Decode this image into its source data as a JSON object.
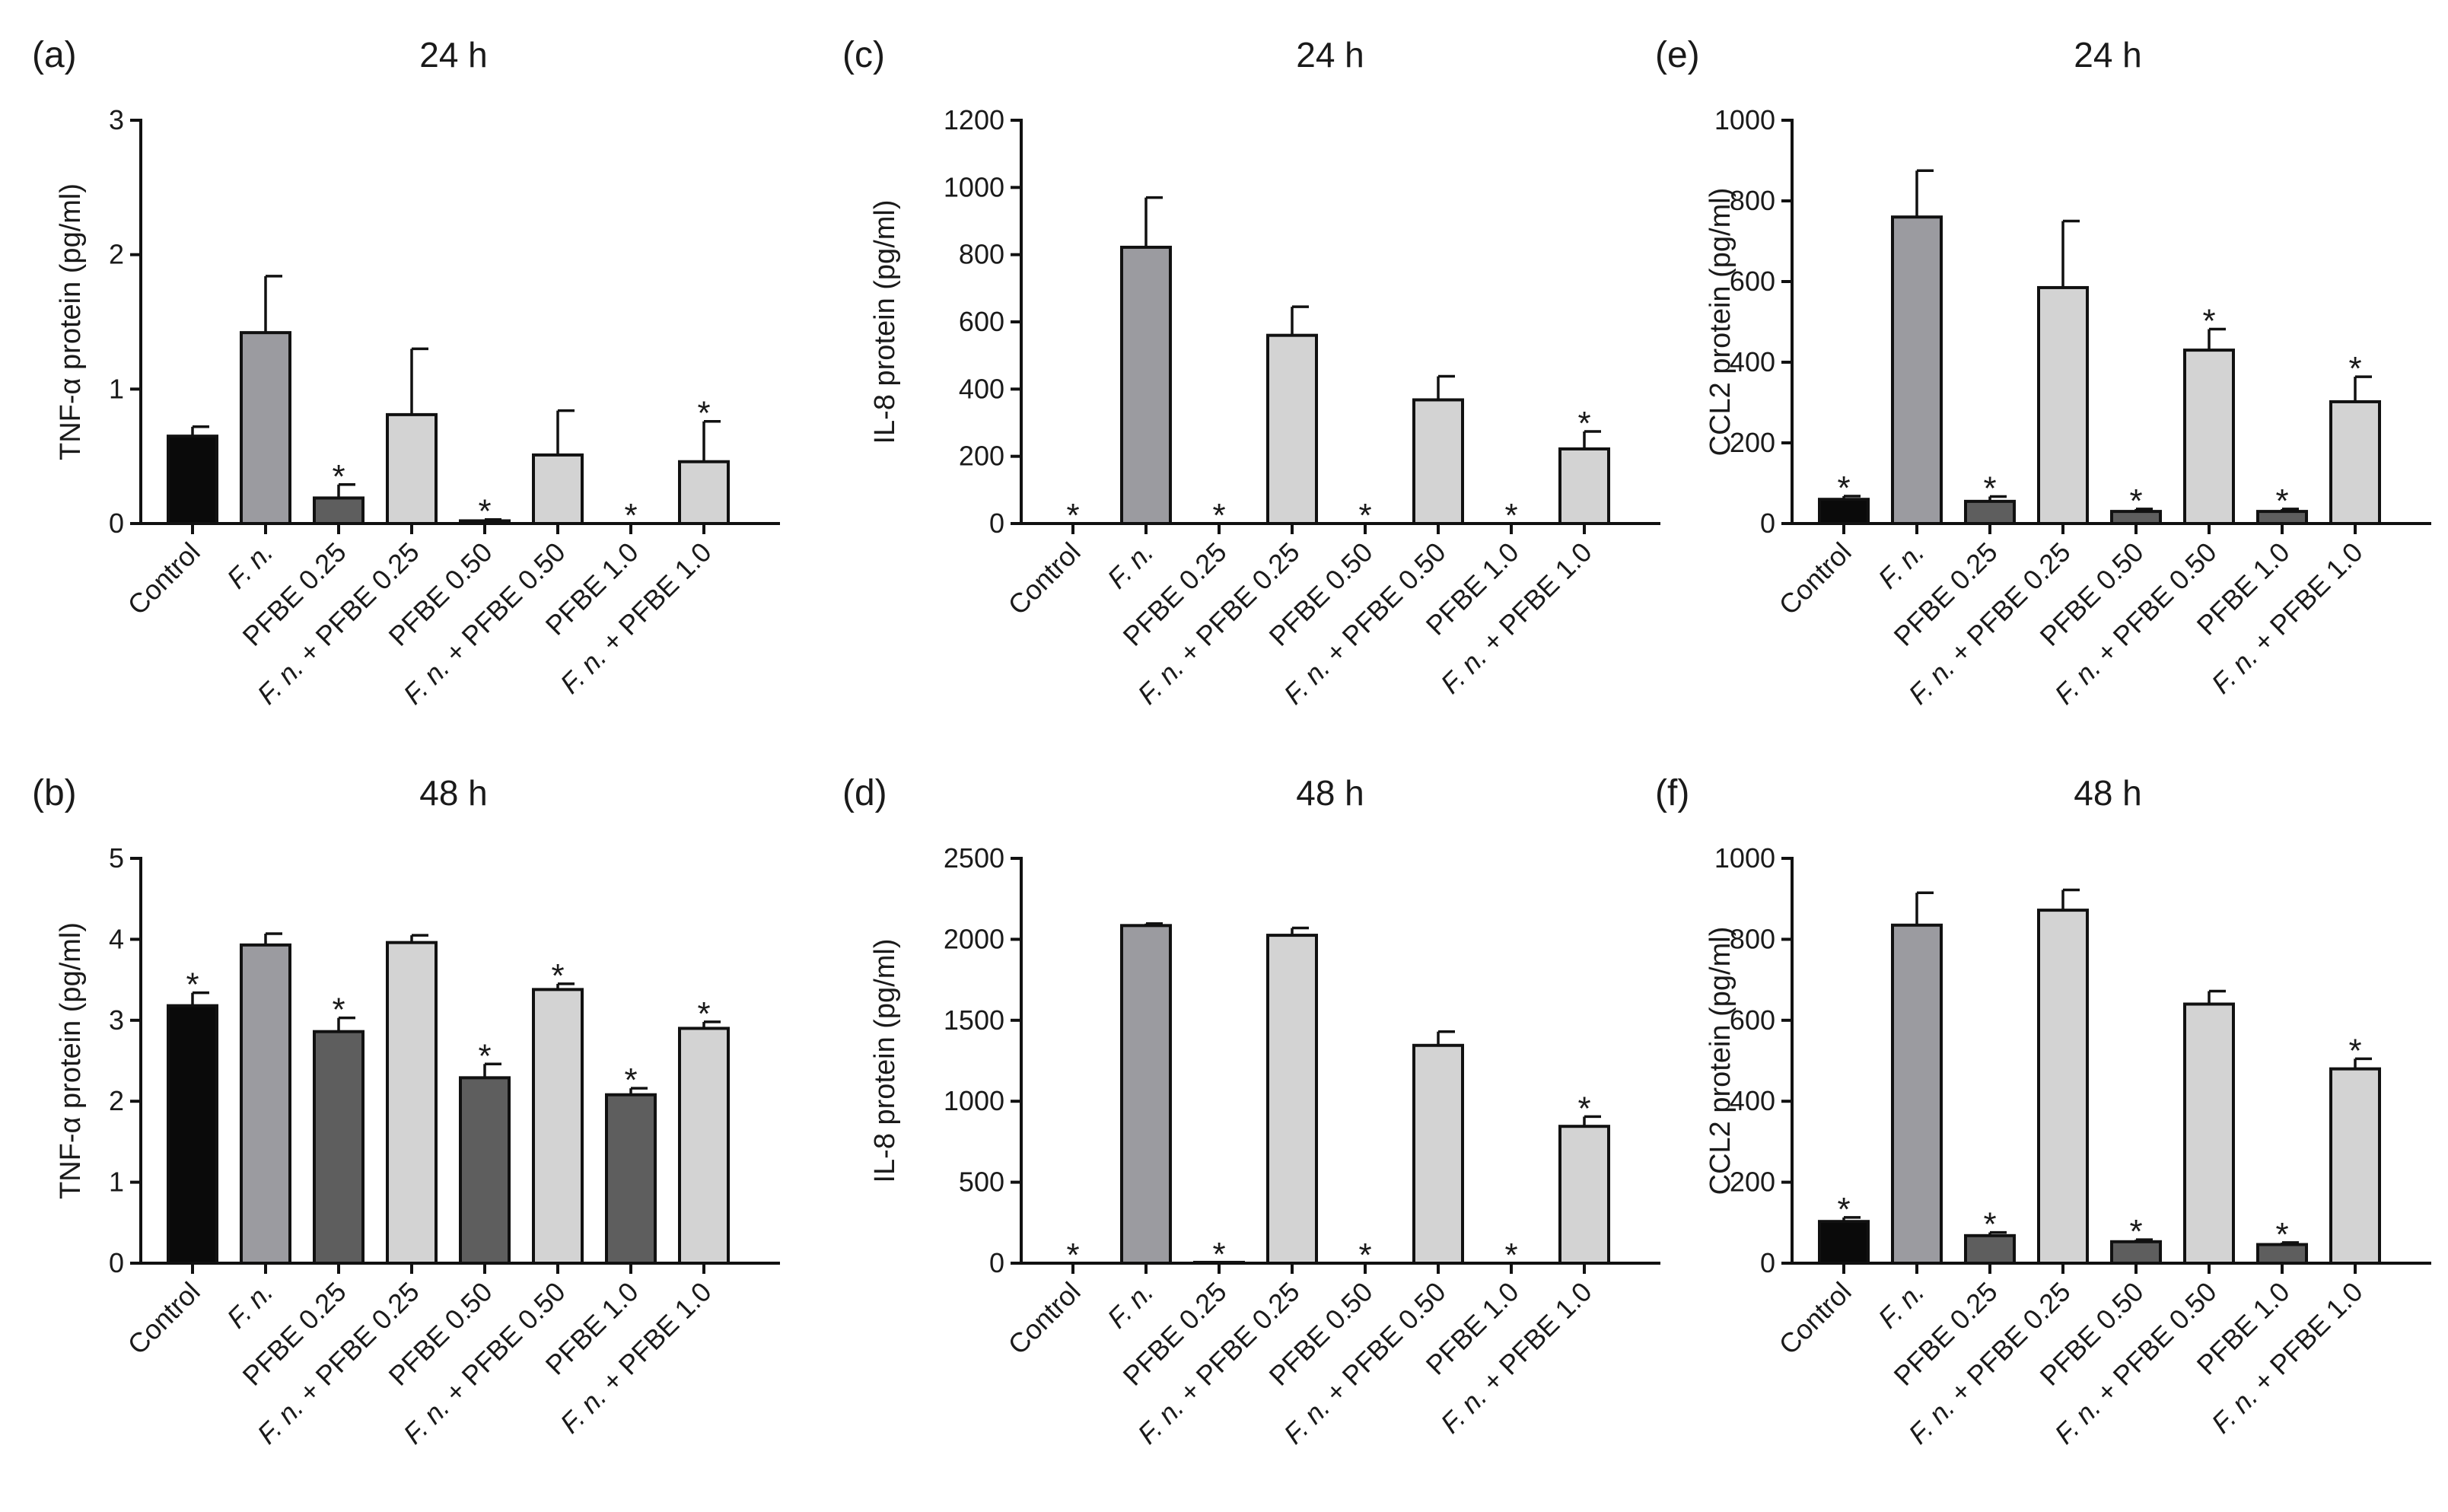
{
  "chart_data": [
    {
      "id": "a",
      "type": "bar",
      "panel_label": "(a)",
      "title": "24 h",
      "ylabel": "TNF-α protein (pg/ml)",
      "xlabel": "",
      "ylim": [
        0,
        3
      ],
      "yticks": [
        0,
        1,
        2,
        3
      ],
      "categories": [
        "Control",
        "F. n.",
        "PFBE 0.25",
        "F. n. + PFBE 0.25",
        "PFBE 0.50",
        "F. n. + PFBE 0.50",
        "PFBE 1.0",
        "F. n. + PFBE 1.0"
      ],
      "values": [
        0.65,
        1.42,
        0.19,
        0.81,
        0.02,
        0.51,
        0.0,
        0.46
      ],
      "errors": [
        0.07,
        0.42,
        0.1,
        0.49,
        0.01,
        0.33,
        0.0,
        0.3
      ],
      "significant": [
        false,
        false,
        true,
        false,
        true,
        false,
        true,
        true
      ]
    },
    {
      "id": "b",
      "type": "bar",
      "panel_label": "(b)",
      "title": "48 h",
      "ylabel": "TNF-α protein (pg/ml)",
      "xlabel": "",
      "ylim": [
        0,
        5
      ],
      "yticks": [
        0,
        1,
        2,
        3,
        4,
        5
      ],
      "categories": [
        "Control",
        "F. n.",
        "PFBE 0.25",
        "F. n. + PFBE 0.25",
        "PFBE 0.50",
        "F. n. + PFBE 0.50",
        "PFBE 1.0",
        "F. n. + PFBE 1.0"
      ],
      "values": [
        3.18,
        3.93,
        2.86,
        3.96,
        2.29,
        3.38,
        2.08,
        2.9
      ],
      "errors": [
        0.16,
        0.14,
        0.17,
        0.09,
        0.17,
        0.07,
        0.08,
        0.08
      ],
      "significant": [
        true,
        false,
        true,
        false,
        true,
        true,
        true,
        true
      ]
    },
    {
      "id": "c",
      "type": "bar",
      "panel_label": "(c)",
      "title": "24 h",
      "ylabel": "IL-8 protein (pg/ml)",
      "xlabel": "",
      "ylim": [
        0,
        1200
      ],
      "yticks": [
        0,
        200,
        400,
        600,
        800,
        1000,
        1200
      ],
      "categories": [
        "Control",
        "F. n.",
        "PFBE 0.25",
        "F. n. + PFBE 0.25",
        "PFBE 0.50",
        "F. n. + PFBE 0.50",
        "PFBE 1.0",
        "F. n. + PFBE 1.0"
      ],
      "values": [
        0,
        822,
        0,
        560,
        0,
        368,
        0,
        222
      ],
      "errors": [
        0,
        148,
        0,
        85,
        0,
        70,
        0,
        52
      ],
      "significant": [
        true,
        false,
        true,
        false,
        true,
        false,
        true,
        true
      ]
    },
    {
      "id": "d",
      "type": "bar",
      "panel_label": "(d)",
      "title": "48 h",
      "ylabel": "IL-8 protein (pg/ml)",
      "xlabel": "",
      "ylim": [
        0,
        2500
      ],
      "yticks": [
        0,
        500,
        1000,
        1500,
        2000,
        2500
      ],
      "categories": [
        "Control",
        "F. n.",
        "PFBE 0.25",
        "F. n. + PFBE 0.25",
        "PFBE 0.50",
        "F. n. + PFBE 0.50",
        "PFBE 1.0",
        "F. n. + PFBE 1.0"
      ],
      "values": [
        0,
        2085,
        5,
        2025,
        0,
        1345,
        0,
        845
      ],
      "errors": [
        0,
        12,
        0,
        45,
        0,
        85,
        0,
        60
      ],
      "significant": [
        true,
        false,
        true,
        false,
        true,
        false,
        true,
        true
      ]
    },
    {
      "id": "e",
      "type": "bar",
      "panel_label": "(e)",
      "title": "24 h",
      "ylabel": "CCL2 protein (pg/ml)",
      "xlabel": "",
      "ylim": [
        0,
        1000
      ],
      "yticks": [
        0,
        200,
        400,
        600,
        800,
        1000
      ],
      "categories": [
        "Control",
        "F. n.",
        "PFBE 0.25",
        "F. n. + PFBE 0.25",
        "PFBE 0.50",
        "F. n. + PFBE 0.50",
        "PFBE 1.0",
        "F. n. + PFBE 1.0"
      ],
      "values": [
        60,
        760,
        55,
        585,
        30,
        430,
        30,
        302
      ],
      "errors": [
        8,
        115,
        12,
        165,
        6,
        52,
        6,
        62
      ],
      "significant": [
        true,
        false,
        true,
        false,
        true,
        true,
        true,
        true
      ]
    },
    {
      "id": "f",
      "type": "bar",
      "panel_label": "(f)",
      "title": "48 h",
      "ylabel": "CCL2 protein (pg/ml)",
      "xlabel": "",
      "ylim": [
        0,
        1000
      ],
      "yticks": [
        0,
        200,
        400,
        600,
        800,
        1000
      ],
      "categories": [
        "Control",
        "F. n.",
        "PFBE 0.25",
        "F. n. + PFBE 0.25",
        "PFBE 0.50",
        "F. n. + PFBE 0.50",
        "PFBE 1.0",
        "F. n. + PFBE 1.0"
      ],
      "values": [
        103,
        835,
        68,
        872,
        53,
        640,
        46,
        480
      ],
      "errors": [
        10,
        80,
        8,
        50,
        5,
        32,
        5,
        25
      ],
      "significant": [
        true,
        false,
        true,
        false,
        true,
        false,
        true,
        true
      ]
    }
  ],
  "colors": {
    "control": "#0a0a0a",
    "fn": "#9b9ba0",
    "pfbe": "#5e5e5e",
    "fn_pfbe": "#d3d3d3",
    "axis": "#111111",
    "text": "#1a1a1a"
  },
  "bar_color_keys": [
    "control",
    "fn",
    "pfbe",
    "fn_pfbe",
    "pfbe",
    "fn_pfbe",
    "pfbe",
    "fn_pfbe"
  ],
  "significance_symbol": "*"
}
